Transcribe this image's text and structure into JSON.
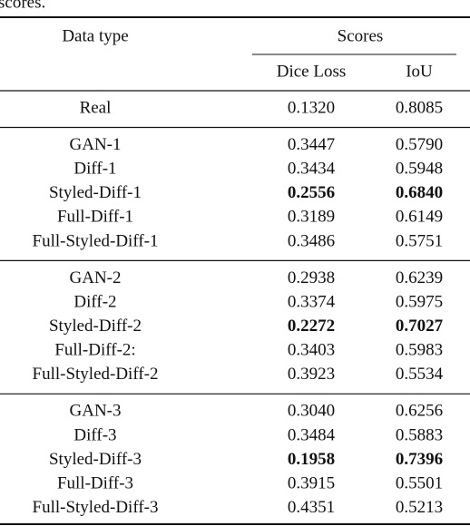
{
  "caption_fragment": "scores.",
  "table": {
    "header": [
      "Data type",
      "Scores"
    ],
    "subheader": [
      "Dice Loss",
      "IoU"
    ],
    "groups": [
      {
        "rows": [
          [
            "Real",
            "0.1320",
            "0.8085"
          ]
        ]
      },
      {
        "rows": [
          [
            "GAN-1",
            "0.3447",
            "0.5790"
          ],
          [
            "Diff-1",
            "0.3434",
            "0.5948"
          ],
          [
            "Styled-Diff-1",
            "0.2556",
            "0.6840"
          ],
          [
            "Full-Diff-1",
            "0.3189",
            "0.6149"
          ],
          [
            "Full-Styled-Diff-1",
            "0.3486",
            "0.5751"
          ]
        ],
        "bold_row": 2
      },
      {
        "rows": [
          [
            "GAN-2",
            "0.2938",
            "0.6239"
          ],
          [
            "Diff-2",
            "0.3374",
            "0.5975"
          ],
          [
            "Styled-Diff-2",
            "0.2272",
            "0.7027"
          ],
          [
            "Full-Diff-2:",
            "0.3403",
            "0.5983"
          ],
          [
            "Full-Styled-Diff-2",
            "0.3923",
            "0.5534"
          ]
        ],
        "bold_row": 2
      },
      {
        "rows": [
          [
            "GAN-3",
            "0.3040",
            "0.6256"
          ],
          [
            "Diff-3",
            "0.3484",
            "0.5883"
          ],
          [
            "Styled-Diff-3",
            "0.1958",
            "0.7396"
          ],
          [
            "Full-Diff-3",
            "0.3915",
            "0.5501"
          ],
          [
            "Full-Styled-Diff-3",
            "0.4351",
            "0.5213"
          ]
        ],
        "bold_row": 2
      }
    ]
  }
}
